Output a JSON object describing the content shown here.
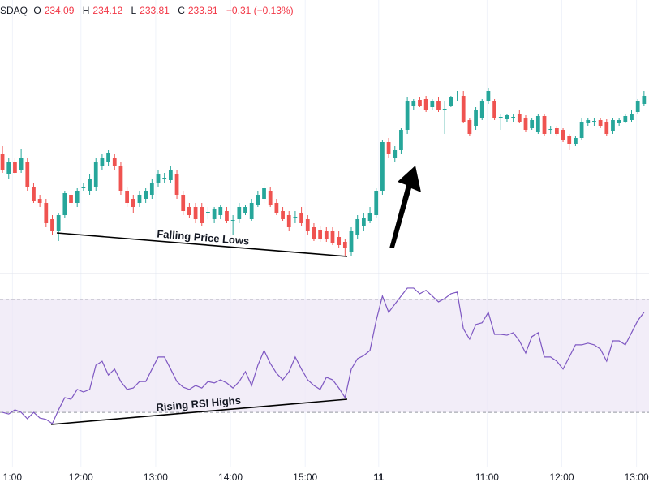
{
  "header": {
    "symbol": "SDAQ",
    "fields": [
      {
        "label": "O",
        "value": "234.09"
      },
      {
        "label": "H",
        "value": "234.12"
      },
      {
        "label": "L",
        "value": "233.81"
      },
      {
        "label": "C",
        "value": "233.81"
      }
    ],
    "change": "−0.31 (−0.13%)"
  },
  "chart_data": [
    {
      "type": "candlestick",
      "annotation": "Falling Price Lows",
      "up_color": "#26a69a",
      "down_color": "#ef5350",
      "xlim": [
        -0.4,
        103.8
      ],
      "ylim": [
        229.5,
        236.2
      ],
      "xticks": [
        {
          "value": 1.6,
          "label": "1:00"
        },
        {
          "value": 12.6,
          "label": "12:00"
        },
        {
          "value": 24.6,
          "label": "13:00"
        },
        {
          "value": 36.6,
          "label": "14:00"
        },
        {
          "value": 48.6,
          "label": "15:00"
        },
        {
          "value": 60.4,
          "label": "11"
        },
        {
          "value": 77.8,
          "label": "11:00"
        },
        {
          "value": 89.8,
          "label": "12:00"
        },
        {
          "value": 101.8,
          "label": "13:00"
        }
      ],
      "ohlc": [
        [
          232.4,
          232.6,
          231.94,
          232.0
        ],
        [
          231.9,
          232.3,
          231.8,
          232.2
        ],
        [
          232.2,
          232.3,
          231.9,
          231.94
        ],
        [
          232.0,
          232.54,
          231.94,
          232.3
        ],
        [
          232.2,
          232.3,
          231.5,
          231.6
        ],
        [
          231.6,
          231.7,
          231.2,
          231.24
        ],
        [
          231.3,
          231.4,
          231.1,
          231.2
        ],
        [
          231.2,
          231.3,
          230.6,
          230.7
        ],
        [
          230.8,
          230.9,
          230.4,
          230.5
        ],
        [
          230.5,
          230.96,
          230.26,
          230.9
        ],
        [
          230.9,
          231.5,
          230.84,
          231.44
        ],
        [
          231.4,
          231.5,
          231.1,
          231.2
        ],
        [
          231.2,
          231.56,
          231.1,
          231.5
        ],
        [
          231.56,
          231.7,
          231.5,
          231.58
        ],
        [
          231.5,
          231.9,
          231.4,
          231.8
        ],
        [
          231.6,
          232.3,
          231.5,
          232.2
        ],
        [
          232.1,
          232.4,
          232.0,
          232.3
        ],
        [
          232.2,
          232.5,
          232.1,
          232.44
        ],
        [
          232.3,
          232.4,
          232.0,
          232.1
        ],
        [
          232.1,
          232.2,
          231.4,
          231.5
        ],
        [
          231.5,
          231.6,
          231.1,
          231.2
        ],
        [
          231.3,
          231.4,
          230.96,
          231.1
        ],
        [
          231.2,
          231.5,
          231.1,
          231.4
        ],
        [
          231.3,
          231.56,
          231.2,
          231.5
        ],
        [
          231.4,
          231.8,
          231.3,
          231.7
        ],
        [
          231.7,
          232.0,
          231.6,
          231.9
        ],
        [
          231.8,
          231.94,
          231.7,
          231.82
        ],
        [
          231.76,
          232.1,
          231.7,
          232.0
        ],
        [
          231.9,
          232.0,
          231.3,
          231.4
        ],
        [
          231.4,
          231.5,
          230.9,
          231.0
        ],
        [
          231.1,
          231.2,
          230.84,
          230.9
        ],
        [
          231.1,
          231.2,
          230.7,
          230.8
        ],
        [
          231.1,
          231.2,
          230.64,
          230.7
        ],
        [
          230.96,
          231.1,
          230.8,
          230.98
        ],
        [
          230.8,
          231.1,
          230.7,
          231.04
        ],
        [
          230.9,
          231.16,
          230.8,
          231.1
        ],
        [
          231.0,
          231.1,
          230.7,
          230.76
        ],
        [
          230.76,
          230.9,
          230.4,
          230.78
        ],
        [
          230.8,
          231.2,
          230.7,
          231.1
        ],
        [
          230.96,
          231.16,
          230.9,
          231.1
        ],
        [
          230.8,
          231.3,
          230.76,
          231.2
        ],
        [
          231.16,
          231.5,
          231.1,
          231.4
        ],
        [
          231.3,
          231.7,
          231.2,
          231.56
        ],
        [
          231.5,
          231.6,
          231.1,
          231.16
        ],
        [
          231.2,
          231.3,
          230.9,
          230.96
        ],
        [
          231.0,
          231.1,
          230.76,
          230.8
        ],
        [
          230.9,
          231.0,
          230.5,
          230.6
        ],
        [
          230.84,
          231.0,
          230.7,
          230.86
        ],
        [
          230.96,
          231.1,
          230.64,
          230.7
        ],
        [
          230.8,
          230.9,
          230.4,
          230.5
        ],
        [
          230.6,
          230.7,
          230.26,
          230.3
        ],
        [
          230.54,
          230.64,
          230.24,
          230.3
        ],
        [
          230.5,
          230.6,
          230.24,
          230.3
        ],
        [
          230.5,
          230.6,
          230.16,
          230.2
        ],
        [
          230.36,
          230.5,
          230.1,
          230.16
        ],
        [
          230.24,
          230.3,
          229.88,
          230.1
        ],
        [
          230.0,
          230.6,
          229.9,
          230.5
        ],
        [
          230.4,
          230.9,
          230.3,
          230.8
        ],
        [
          230.64,
          230.96,
          230.5,
          230.84
        ],
        [
          230.76,
          231.1,
          230.7,
          230.96
        ],
        [
          230.9,
          231.56,
          230.84,
          231.5
        ],
        [
          231.5,
          232.76,
          231.4,
          232.7
        ],
        [
          232.7,
          232.8,
          232.3,
          232.4
        ],
        [
          232.3,
          232.6,
          232.2,
          232.5
        ],
        [
          232.5,
          233.04,
          232.4,
          233.0
        ],
        [
          233.0,
          233.8,
          232.9,
          233.7
        ],
        [
          233.6,
          233.76,
          233.5,
          233.7
        ],
        [
          233.74,
          233.8,
          233.56,
          233.6
        ],
        [
          233.76,
          233.84,
          233.44,
          233.5
        ],
        [
          233.56,
          233.76,
          233.5,
          233.7
        ],
        [
          233.7,
          233.8,
          233.44,
          233.5
        ],
        [
          233.5,
          233.7,
          232.9,
          233.52
        ],
        [
          233.6,
          233.84,
          233.56,
          233.8
        ],
        [
          233.8,
          233.96,
          233.7,
          233.82
        ],
        [
          233.84,
          233.96,
          233.16,
          233.2
        ],
        [
          233.24,
          233.3,
          232.84,
          232.9
        ],
        [
          233.1,
          233.56,
          233.0,
          233.5
        ],
        [
          233.3,
          233.76,
          233.24,
          233.7
        ],
        [
          233.7,
          234.04,
          233.64,
          233.96
        ],
        [
          233.7,
          233.76,
          233.24,
          233.3
        ],
        [
          233.3,
          233.4,
          233.0,
          233.32
        ],
        [
          233.26,
          233.4,
          233.2,
          233.36
        ],
        [
          233.3,
          233.4,
          233.2,
          233.32
        ],
        [
          233.4,
          233.5,
          233.16,
          233.2
        ],
        [
          233.3,
          233.36,
          232.94,
          233.0
        ],
        [
          233.04,
          233.3,
          233.0,
          233.24
        ],
        [
          232.94,
          233.4,
          232.9,
          233.34
        ],
        [
          233.34,
          233.4,
          232.84,
          232.9
        ],
        [
          233.0,
          233.1,
          232.9,
          233.02
        ],
        [
          233.04,
          233.1,
          232.84,
          232.9
        ],
        [
          233.0,
          233.04,
          232.7,
          232.76
        ],
        [
          232.84,
          232.9,
          232.5,
          232.64
        ],
        [
          232.64,
          232.84,
          232.6,
          232.8
        ],
        [
          232.8,
          233.3,
          232.76,
          233.2
        ],
        [
          233.16,
          233.3,
          233.1,
          233.24
        ],
        [
          233.2,
          233.3,
          233.1,
          233.22
        ],
        [
          233.24,
          233.3,
          233.04,
          233.1
        ],
        [
          233.2,
          233.26,
          232.84,
          232.9
        ],
        [
          232.96,
          233.3,
          232.9,
          233.24
        ],
        [
          233.16,
          233.3,
          233.1,
          233.24
        ],
        [
          233.2,
          233.4,
          233.16,
          233.34
        ],
        [
          233.24,
          233.5,
          233.2,
          233.4
        ],
        [
          233.44,
          233.76,
          233.4,
          233.7
        ],
        [
          233.64,
          233.96,
          233.6,
          233.84
        ]
      ]
    },
    {
      "type": "line",
      "annotation": "Rising RSI Highs",
      "color": "#7e57c2",
      "band_color": "#ede7f6",
      "ylim": [
        12.2,
        78.3
      ],
      "bands": [
        30,
        70
      ],
      "values": [
        30.0,
        29.4,
        30.9,
        30.0,
        27.7,
        30.0,
        28.0,
        27.5,
        26.0,
        30.9,
        35.2,
        34.6,
        38.1,
        37.2,
        38.1,
        46.7,
        48.1,
        43.2,
        45.3,
        40.9,
        38.1,
        38.6,
        40.9,
        40.9,
        45.3,
        49.6,
        49.6,
        45.3,
        40.9,
        38.9,
        38.1,
        39.5,
        38.6,
        40.9,
        40.4,
        41.5,
        40.4,
        38.6,
        40.9,
        44.4,
        39.5,
        46.7,
        51.9,
        47.3,
        43.8,
        41.5,
        44.4,
        49.6,
        45.3,
        41.5,
        39.5,
        38.1,
        42.4,
        41.5,
        38.6,
        35.2,
        45.3,
        49.0,
        50.1,
        51.9,
        62.5,
        71.2,
        65.4,
        68.3,
        71.2,
        74.0,
        74.0,
        72.0,
        73.2,
        71.2,
        69.1,
        70.3,
        72.0,
        72.6,
        59.6,
        55.9,
        61.1,
        61.7,
        65.4,
        57.6,
        57.6,
        57.3,
        58.2,
        55.3,
        51.0,
        56.8,
        58.2,
        49.6,
        49.6,
        48.1,
        45.3,
        49.6,
        53.9,
        53.9,
        54.5,
        53.9,
        52.4,
        48.1,
        55.3,
        55.3,
        53.9,
        58.2,
        62.5,
        65.4
      ]
    }
  ]
}
